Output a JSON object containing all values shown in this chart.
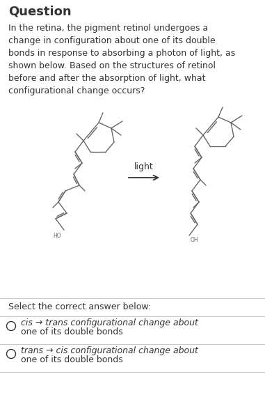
{
  "title": "Question",
  "paragraph": "In the retina, the pigment retinol undergoes a\nchange in configuration about one of its double\nbonds in response to absorbing a photon of light, as\nshown below. Based on the structures of retinol\nbefore and after the absorption of light, what\nconfigurational change occurs?",
  "arrow_label": "light",
  "select_label": "Select the correct answer below:",
  "answer1_italic": "cis → trans",
  "answer1_rest": " configurational change about",
  "answer1_rest2": "one of its double bonds",
  "answer2_italic": "trans → cis",
  "answer2_rest": " configurational change about",
  "answer2_rest2": "one of its double bonds",
  "bg_color": "#ffffff",
  "text_color": "#333333",
  "mol_color": "#666666",
  "divider_color": "#cccccc",
  "title_fontsize": 13,
  "para_fontsize": 9.0,
  "ans_fontsize": 9.0
}
